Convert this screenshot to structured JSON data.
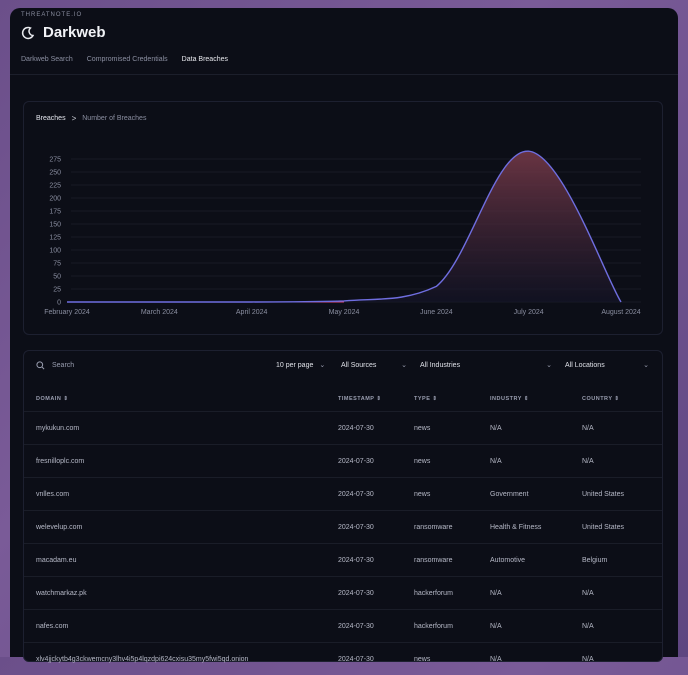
{
  "app": {
    "brand": "THREATNOTE.IO",
    "title": "Darkweb"
  },
  "tabs": [
    {
      "label": "Darkweb Search",
      "active": false
    },
    {
      "label": "Compromised Credentials",
      "active": false
    },
    {
      "label": "Data Breaches",
      "active": true
    }
  ],
  "breadcrumb": {
    "current": "Breaches",
    "separator": ">",
    "sub": "Number of Breaches"
  },
  "chart_data": {
    "type": "area",
    "x": [
      "February 2024",
      "March 2024",
      "April 2024",
      "May 2024",
      "June 2024",
      "July 2024",
      "August 2024"
    ],
    "values": [
      0,
      0,
      0,
      2,
      30,
      290,
      0
    ],
    "yticks": [
      0,
      25,
      50,
      75,
      100,
      125,
      150,
      175,
      200,
      225,
      250,
      275
    ],
    "ylim": [
      0,
      300
    ],
    "colors": {
      "line": "#6f6ee0",
      "fill_top": "#7a3b4a",
      "fill_bottom": "#141428",
      "baseline": "#e0487a"
    }
  },
  "toolbar": {
    "search_placeholder": "Search",
    "per_page": "10 per page",
    "sources": "All Sources",
    "industries": "All Industries",
    "locations": "All Locations"
  },
  "table": {
    "headers": [
      "DOMAIN",
      "TIMESTAMP",
      "TYPE",
      "INDUSTRY",
      "COUNTRY"
    ],
    "rows": [
      [
        "mykukun.com",
        "2024-07-30",
        "news",
        "N/A",
        "N/A"
      ],
      [
        "fresnilloplc.com",
        "2024-07-30",
        "news",
        "N/A",
        "N/A"
      ],
      [
        "vnlles.com",
        "2024-07-30",
        "news",
        "Government",
        "United States"
      ],
      [
        "welevelup.com",
        "2024-07-30",
        "ransomware",
        "Health & Fitness",
        "United States"
      ],
      [
        "macadam.eu",
        "2024-07-30",
        "ransomware",
        "Automotive",
        "Belgium"
      ],
      [
        "watchmarkaz.pk",
        "2024-07-30",
        "hackerforum",
        "N/A",
        "N/A"
      ],
      [
        "nafes.com",
        "2024-07-30",
        "hackerforum",
        "N/A",
        "N/A"
      ],
      [
        "xlv4jjckytb4g3ckwemcny3lhv4i5p4lqzdpi624cxisu35my5fwi5qd.onion",
        "2024-07-30",
        "news",
        "N/A",
        "N/A"
      ]
    ]
  }
}
